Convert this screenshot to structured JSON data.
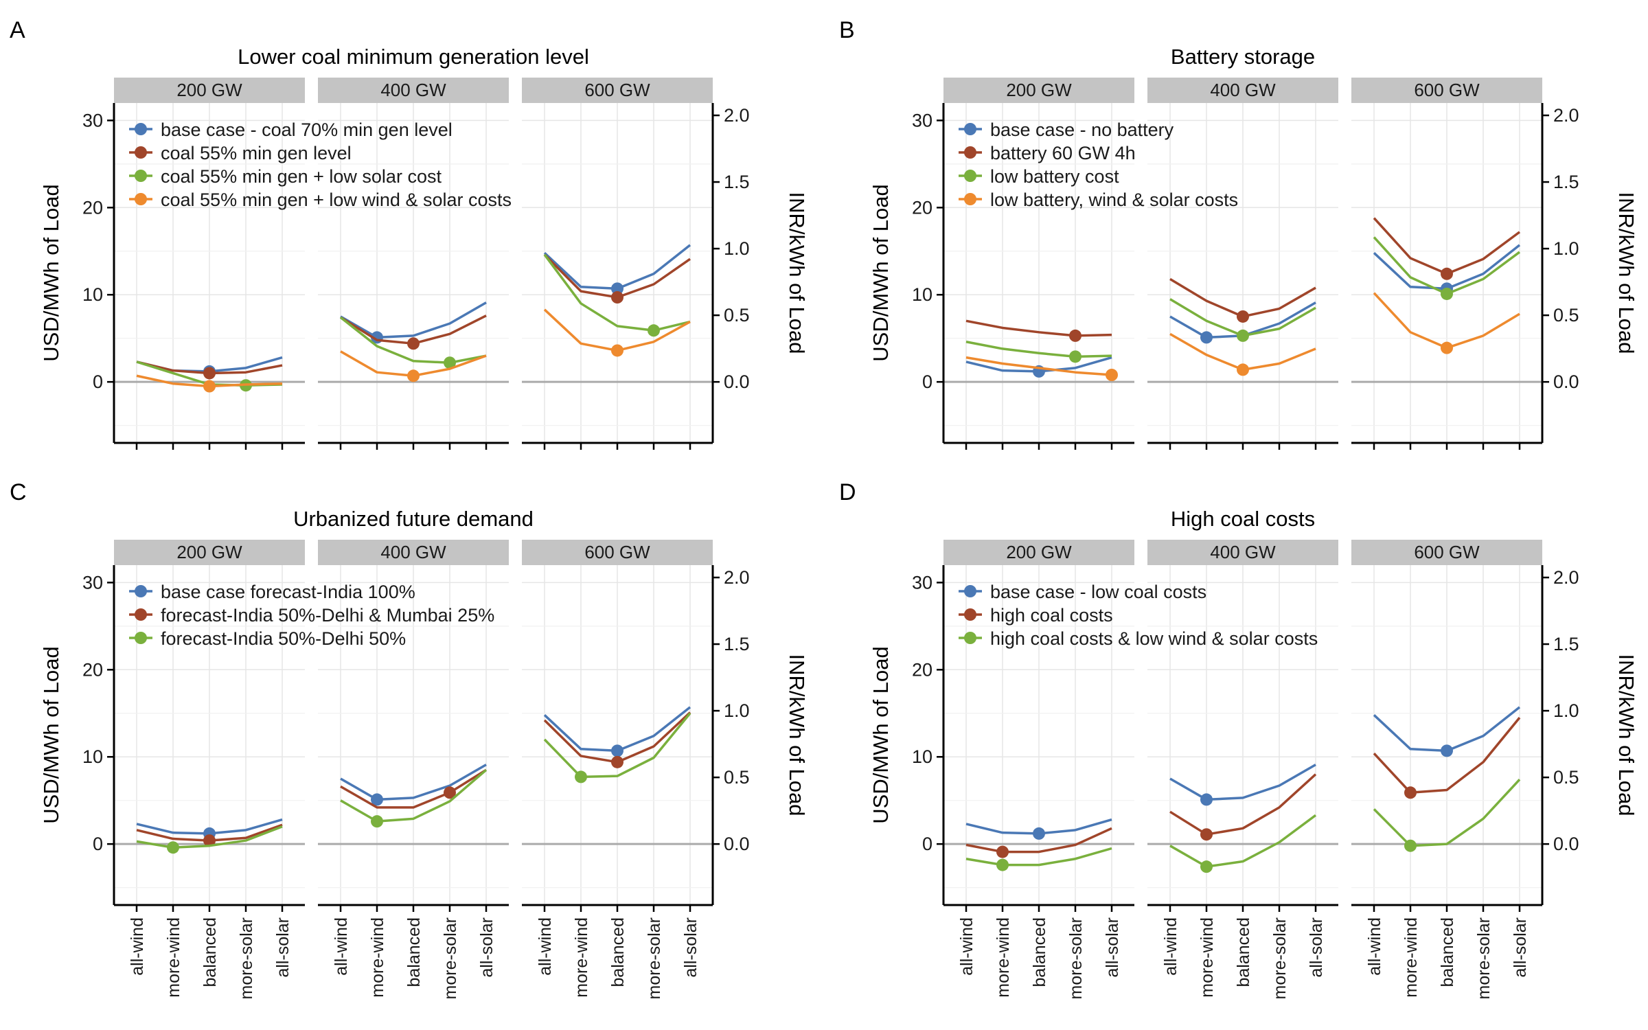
{
  "figure": {
    "facets": [
      "200 GW",
      "400 GW",
      "600 GW"
    ],
    "categories": [
      "all-wind",
      "more-wind",
      "balanced",
      "more-solar",
      "all-solar"
    ],
    "ylabel_left": "USD/MWh of Load",
    "ylabel_right": "INR/kWh of Load",
    "yticks_left": [
      0,
      10,
      20,
      30
    ],
    "yticks_right": [
      0.0,
      0.5,
      1.0,
      1.5,
      2.0
    ],
    "ylim_left": [
      -7,
      32
    ],
    "inr_per_usd_mwh": 0.0654
  },
  "colors": {
    "blue": "#4a78b5",
    "brown": "#a0452a",
    "green": "#7ab03d",
    "orange": "#ee8a2e",
    "strip": "#c4c4c4",
    "zero_line": "#aaaaaa",
    "grid": "#e6e6e6"
  },
  "chart_data": [
    {
      "panel_letter": "A",
      "title": "Lower coal minimum generation level",
      "type": "line",
      "series": [
        {
          "name": "base case - coal 70% min gen level",
          "color": "blue",
          "values": [
            [
              2.3,
              1.3,
              1.2,
              1.6,
              2.8
            ],
            [
              7.5,
              5.1,
              5.3,
              6.7,
              9.1
            ],
            [
              14.8,
              10.9,
              10.7,
              12.4,
              15.7
            ]
          ],
          "markers": [
            2,
            1,
            2
          ]
        },
        {
          "name": "coal 55% min gen level",
          "color": "brown",
          "values": [
            [
              2.3,
              1.3,
              1.0,
              1.1,
              1.9
            ],
            [
              7.4,
              4.8,
              4.4,
              5.5,
              7.6
            ],
            [
              14.6,
              10.4,
              9.7,
              11.2,
              14.1
            ]
          ],
          "markers": [
            2,
            2,
            2
          ]
        },
        {
          "name": "coal 55% min gen + low solar cost",
          "color": "green",
          "values": [
            [
              2.3,
              1.0,
              -0.3,
              -0.4,
              -0.3
            ],
            [
              7.4,
              4.1,
              2.4,
              2.2,
              3.0
            ],
            [
              14.6,
              9.0,
              6.4,
              5.9,
              6.9
            ]
          ],
          "markers": [
            3,
            3,
            3
          ]
        },
        {
          "name": "coal 55% min gen + low wind & solar costs",
          "color": "orange",
          "values": [
            [
              0.7,
              -0.2,
              -0.5,
              -0.3,
              -0.2
            ],
            [
              3.5,
              1.1,
              0.7,
              1.5,
              3.0
            ],
            [
              8.3,
              4.4,
              3.6,
              4.6,
              6.9
            ]
          ],
          "markers": [
            2,
            2,
            2
          ]
        }
      ]
    },
    {
      "panel_letter": "B",
      "title": "Battery storage",
      "type": "line",
      "series": [
        {
          "name": "base case - no battery",
          "color": "blue",
          "values": [
            [
              2.3,
              1.3,
              1.2,
              1.6,
              2.8
            ],
            [
              7.5,
              5.1,
              5.3,
              6.7,
              9.1
            ],
            [
              14.8,
              10.9,
              10.7,
              12.4,
              15.7
            ]
          ],
          "markers": [
            2,
            1,
            2
          ]
        },
        {
          "name": "battery 60 GW 4h",
          "color": "brown",
          "values": [
            [
              7.0,
              6.2,
              5.7,
              5.3,
              5.4
            ],
            [
              11.8,
              9.3,
              7.5,
              8.4,
              10.8
            ],
            [
              18.8,
              14.2,
              12.4,
              14.1,
              17.2
            ]
          ],
          "markers": [
            3,
            2,
            2
          ]
        },
        {
          "name": "low battery cost",
          "color": "green",
          "values": [
            [
              4.6,
              3.8,
              3.3,
              2.9,
              3.0
            ],
            [
              9.5,
              7.0,
              5.3,
              6.1,
              8.5
            ],
            [
              16.6,
              12.0,
              10.1,
              11.8,
              14.9
            ]
          ],
          "markers": [
            3,
            2,
            2
          ]
        },
        {
          "name": "low battery, wind & solar costs",
          "color": "orange",
          "values": [
            [
              2.8,
              2.1,
              1.6,
              1.1,
              0.8
            ],
            [
              5.5,
              3.1,
              1.4,
              2.1,
              3.8
            ],
            [
              10.2,
              5.7,
              3.9,
              5.3,
              7.8
            ]
          ],
          "markers": [
            4,
            2,
            2
          ]
        }
      ]
    },
    {
      "panel_letter": "C",
      "title": "Urbanized future demand",
      "type": "line",
      "series": [
        {
          "name": "base case forecast-India 100%",
          "color": "blue",
          "values": [
            [
              2.3,
              1.3,
              1.2,
              1.6,
              2.8
            ],
            [
              7.5,
              5.1,
              5.3,
              6.7,
              9.1
            ],
            [
              14.8,
              10.9,
              10.7,
              12.4,
              15.7
            ]
          ],
          "markers": [
            2,
            1,
            2
          ]
        },
        {
          "name": "forecast-India 50%-Delhi & Mumbai 25%",
          "color": "brown",
          "values": [
            [
              1.6,
              0.6,
              0.4,
              0.7,
              2.2
            ],
            [
              6.6,
              4.2,
              4.2,
              5.9,
              8.5
            ],
            [
              14.2,
              10.1,
              9.4,
              11.2,
              15.1
            ]
          ],
          "markers": [
            2,
            3,
            2
          ]
        },
        {
          "name": "forecast-India 50%-Delhi 50%",
          "color": "green",
          "values": [
            [
              0.3,
              -0.4,
              -0.2,
              0.4,
              2.0
            ],
            [
              5.0,
              2.6,
              2.9,
              4.9,
              8.5
            ],
            [
              12.0,
              7.7,
              7.8,
              9.9,
              15.0
            ]
          ],
          "markers": [
            1,
            1,
            1
          ]
        }
      ]
    },
    {
      "panel_letter": "D",
      "title": "High coal costs",
      "type": "line",
      "series": [
        {
          "name": "base case - low coal costs",
          "color": "blue",
          "values": [
            [
              2.3,
              1.3,
              1.2,
              1.6,
              2.8
            ],
            [
              7.5,
              5.1,
              5.3,
              6.7,
              9.1
            ],
            [
              14.8,
              10.9,
              10.7,
              12.4,
              15.7
            ]
          ],
          "markers": [
            2,
            1,
            2
          ]
        },
        {
          "name": "high coal costs",
          "color": "brown",
          "values": [
            [
              -0.1,
              -0.9,
              -0.9,
              -0.1,
              1.8
            ],
            [
              3.7,
              1.1,
              1.8,
              4.2,
              8.0
            ],
            [
              10.4,
              5.9,
              6.2,
              9.4,
              14.5
            ]
          ],
          "markers": [
            1,
            1,
            1
          ]
        },
        {
          "name": "high coal costs & low wind & solar costs",
          "color": "green",
          "values": [
            [
              -1.7,
              -2.4,
              -2.4,
              -1.7,
              -0.5
            ],
            [
              -0.2,
              -2.6,
              -2.0,
              0.2,
              3.3
            ],
            [
              4.0,
              -0.2,
              0.0,
              2.9,
              7.4
            ]
          ],
          "markers": [
            1,
            1,
            1
          ]
        }
      ]
    }
  ]
}
